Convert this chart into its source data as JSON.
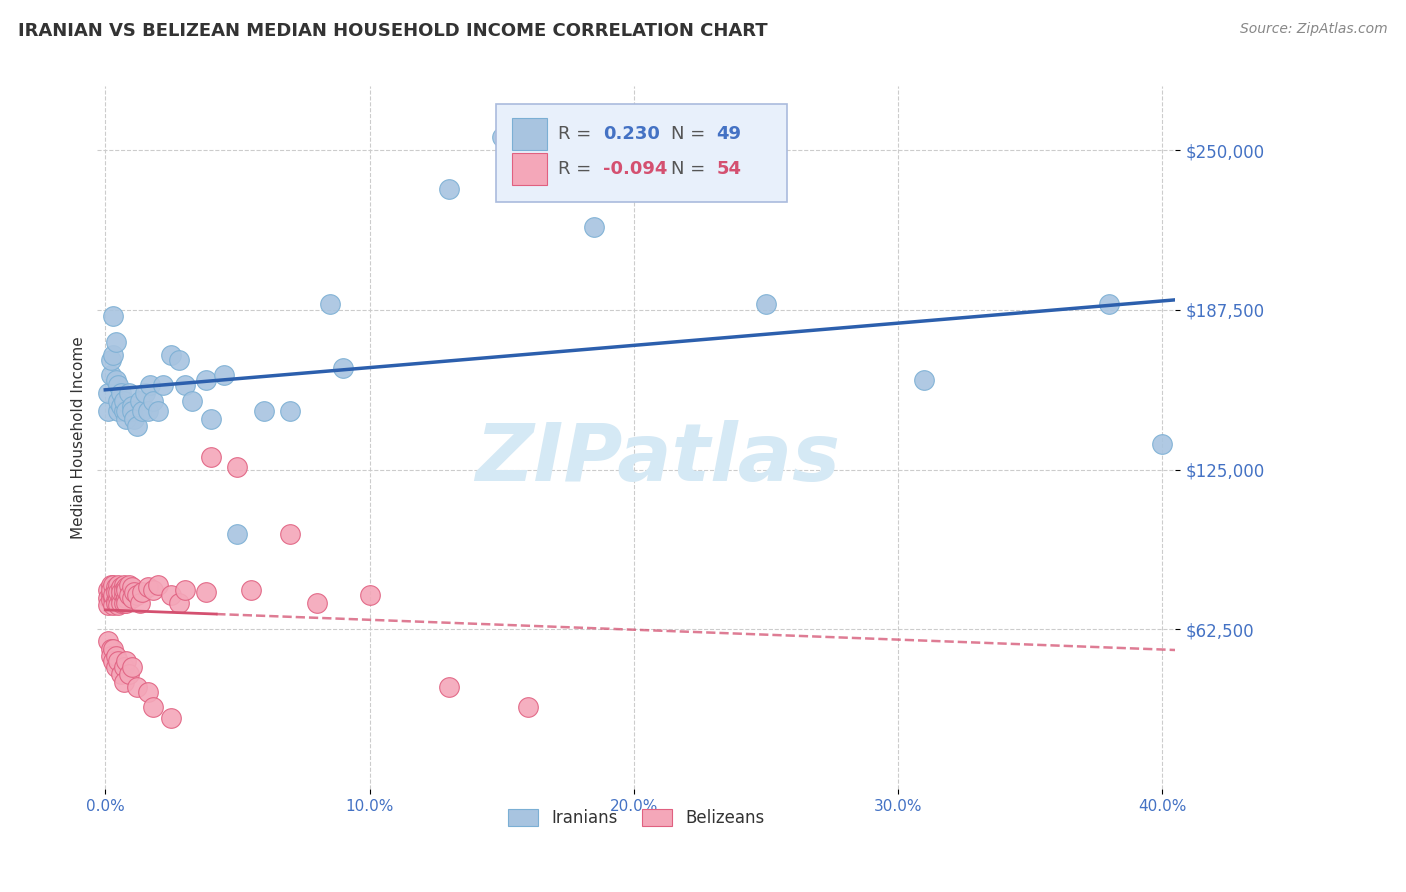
{
  "title": "IRANIAN VS BELIZEAN MEDIAN HOUSEHOLD INCOME CORRELATION CHART",
  "source": "Source: ZipAtlas.com",
  "ylabel": "Median Household Income",
  "ytick_labels": [
    "$62,500",
    "$125,000",
    "$187,500",
    "$250,000"
  ],
  "ytick_values": [
    62500,
    125000,
    187500,
    250000
  ],
  "ylim": [
    0,
    275000
  ],
  "xlim": [
    -0.003,
    0.405
  ],
  "title_color": "#333333",
  "title_fontsize": 13,
  "source_fontsize": 10,
  "source_color": "#888888",
  "tick_label_color": "#4472c4",
  "grid_color": "#cccccc",
  "background_color": "#ffffff",
  "iranians_color": "#a8c4e0",
  "iranians_edge_color": "#7BAFD4",
  "belizeans_color": "#f4a7b9",
  "belizeans_edge_color": "#e06080",
  "iranian_line_color": "#2c5fad",
  "belizean_line_color": "#d45070",
  "watermark_color": "#d5e9f5",
  "legend_box_color": "#e8f0fb",
  "legend_box_edge": "#aabbdd",
  "iranians_scatter": {
    "x": [
      0.001,
      0.001,
      0.002,
      0.002,
      0.003,
      0.003,
      0.004,
      0.004,
      0.005,
      0.005,
      0.005,
      0.006,
      0.006,
      0.007,
      0.007,
      0.008,
      0.008,
      0.009,
      0.01,
      0.01,
      0.011,
      0.012,
      0.013,
      0.014,
      0.015,
      0.016,
      0.017,
      0.018,
      0.02,
      0.022,
      0.025,
      0.028,
      0.03,
      0.033,
      0.038,
      0.04,
      0.045,
      0.05,
      0.06,
      0.07,
      0.085,
      0.09,
      0.13,
      0.15,
      0.185,
      0.25,
      0.31,
      0.38,
      0.4
    ],
    "y": [
      148000,
      155000,
      162000,
      168000,
      185000,
      170000,
      175000,
      160000,
      158000,
      148000,
      152000,
      155000,
      150000,
      148000,
      152000,
      145000,
      148000,
      155000,
      150000,
      148000,
      145000,
      142000,
      152000,
      148000,
      155000,
      148000,
      158000,
      152000,
      148000,
      158000,
      170000,
      168000,
      158000,
      152000,
      160000,
      145000,
      162000,
      100000,
      148000,
      148000,
      190000,
      165000,
      235000,
      255000,
      220000,
      190000,
      160000,
      190000,
      135000
    ]
  },
  "belizeans_scatter": {
    "x": [
      0.001,
      0.001,
      0.001,
      0.002,
      0.002,
      0.002,
      0.002,
      0.003,
      0.003,
      0.003,
      0.003,
      0.004,
      0.004,
      0.004,
      0.004,
      0.005,
      0.005,
      0.005,
      0.005,
      0.006,
      0.006,
      0.006,
      0.006,
      0.007,
      0.007,
      0.007,
      0.007,
      0.008,
      0.008,
      0.008,
      0.008,
      0.009,
      0.009,
      0.01,
      0.01,
      0.011,
      0.012,
      0.013,
      0.014,
      0.016,
      0.018,
      0.02,
      0.025,
      0.028,
      0.03,
      0.038,
      0.04,
      0.05,
      0.055,
      0.07,
      0.08,
      0.1,
      0.13,
      0.16
    ],
    "y": [
      78000,
      75000,
      72000,
      80000,
      76000,
      74000,
      78000,
      80000,
      75000,
      72000,
      76000,
      79000,
      74000,
      77000,
      73000,
      80000,
      75000,
      72000,
      77000,
      79000,
      75000,
      73000,
      77000,
      80000,
      76000,
      73000,
      78000,
      79000,
      75000,
      73000,
      78000,
      80000,
      76000,
      79000,
      75000,
      77000,
      76000,
      73000,
      77000,
      79000,
      78000,
      80000,
      76000,
      73000,
      78000,
      77000,
      130000,
      126000,
      78000,
      100000,
      73000,
      76000,
      40000,
      32000
    ]
  },
  "belizean_extra_low": {
    "x": [
      0.001,
      0.002,
      0.002,
      0.003,
      0.003,
      0.004,
      0.004,
      0.005,
      0.006,
      0.007,
      0.007,
      0.008,
      0.009,
      0.01,
      0.012,
      0.016,
      0.018,
      0.025
    ],
    "y": [
      58000,
      55000,
      52000,
      55000,
      50000,
      48000,
      52000,
      50000,
      45000,
      48000,
      42000,
      50000,
      45000,
      48000,
      40000,
      38000,
      32000,
      28000
    ]
  }
}
